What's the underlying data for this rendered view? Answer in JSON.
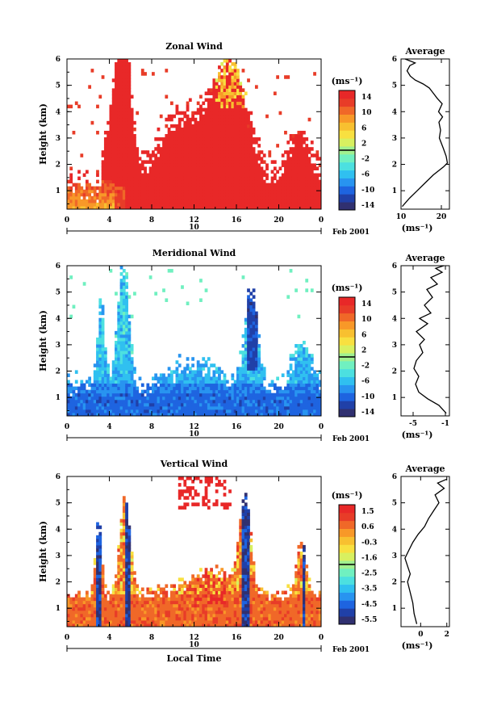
{
  "chart_data": [
    {
      "type": "heatmap",
      "title": "Zonal Wind",
      "ylabel": "Height (km)",
      "xticks": [
        "0",
        "4",
        "8",
        "12",
        "16",
        "20",
        "0"
      ],
      "yticks": [
        "1",
        "2",
        "3",
        "4",
        "5",
        "6"
      ],
      "xlim": [
        0,
        24
      ],
      "ylim": [
        0.3,
        6
      ],
      "date_day": "10",
      "date_label": "Feb 2001",
      "colorbar": {
        "unit_label": "(ms⁻¹)",
        "tick_labels": [
          "14",
          "10",
          "6",
          "2",
          "-2",
          "-6",
          "-10",
          "-14"
        ],
        "range": [
          -16,
          16
        ]
      },
      "profile": {
        "title": "Average",
        "xlabel": "(ms⁻¹)",
        "xticks": [
          "10",
          "20"
        ],
        "xlim": [
          10,
          22
        ],
        "yticks": [
          "1",
          "2",
          "3",
          "4",
          "5",
          "6"
        ],
        "points": [
          [
            10.3,
            0.4
          ],
          [
            12,
            0.7
          ],
          [
            14,
            1.0
          ],
          [
            16,
            1.3
          ],
          [
            18,
            1.6
          ],
          [
            20.5,
            1.9
          ],
          [
            21.5,
            2.05
          ],
          [
            21.2,
            2.3
          ],
          [
            20.5,
            2.6
          ],
          [
            19.5,
            3.0
          ],
          [
            19.8,
            3.3
          ],
          [
            19.4,
            3.6
          ],
          [
            20.3,
            3.8
          ],
          [
            19.3,
            4.0
          ],
          [
            20.2,
            4.3
          ],
          [
            19.0,
            4.5
          ],
          [
            18.0,
            4.7
          ],
          [
            17.0,
            4.9
          ],
          [
            15.5,
            5.05
          ],
          [
            13.5,
            5.2
          ],
          [
            12.3,
            5.35
          ],
          [
            11.5,
            5.55
          ],
          [
            12.2,
            5.75
          ],
          [
            13.5,
            5.85
          ],
          [
            11.0,
            6.0
          ]
        ]
      }
    },
    {
      "type": "heatmap",
      "title": "Meridional Wind",
      "ylabel": "Height (km)",
      "xticks": [
        "0",
        "4",
        "8",
        "12",
        "16",
        "20",
        "0"
      ],
      "yticks": [
        "1",
        "2",
        "3",
        "4",
        "5",
        "6"
      ],
      "xlim": [
        0,
        24
      ],
      "ylim": [
        0.3,
        6
      ],
      "date_day": "10",
      "date_label": "Feb 2001",
      "colorbar": {
        "unit_label": "(ms⁻¹)",
        "tick_labels": [
          "14",
          "10",
          "6",
          "2",
          "-2",
          "-6",
          "-10",
          "-14"
        ],
        "range": [
          -16,
          16
        ]
      },
      "profile": {
        "title": "Average",
        "xlabel": "(ms⁻¹)",
        "xticks": [
          "-5",
          "-1"
        ],
        "xlim": [
          -6.5,
          -0.5
        ],
        "yticks": [
          "1",
          "2",
          "3",
          "4",
          "5",
          "6"
        ],
        "points": [
          [
            -0.9,
            0.4
          ],
          [
            -1.8,
            0.7
          ],
          [
            -3.2,
            0.95
          ],
          [
            -4.3,
            1.2
          ],
          [
            -4.7,
            1.5
          ],
          [
            -4.3,
            1.8
          ],
          [
            -4.9,
            2.1
          ],
          [
            -4.6,
            2.4
          ],
          [
            -3.8,
            2.7
          ],
          [
            -4.2,
            3.0
          ],
          [
            -3.6,
            3.2
          ],
          [
            -4.6,
            3.5
          ],
          [
            -3.2,
            3.8
          ],
          [
            -4.2,
            4.0
          ],
          [
            -2.8,
            4.2
          ],
          [
            -3.6,
            4.5
          ],
          [
            -2.6,
            4.8
          ],
          [
            -3.3,
            5.1
          ],
          [
            -2.0,
            5.3
          ],
          [
            -2.8,
            5.55
          ],
          [
            -1.4,
            5.75
          ],
          [
            -2.2,
            5.9
          ],
          [
            -1.2,
            6.0
          ]
        ]
      }
    },
    {
      "type": "heatmap",
      "title": "Vertical Wind",
      "ylabel": "Height (km)",
      "xlabel": "Local Time",
      "xticks": [
        "0",
        "4",
        "8",
        "12",
        "16",
        "20",
        "0"
      ],
      "yticks": [
        "1",
        "2",
        "3",
        "4",
        "5",
        "6"
      ],
      "xlim": [
        0,
        24
      ],
      "ylim": [
        0.3,
        6
      ],
      "date_day": "10",
      "date_label": "Feb 2001",
      "colorbar": {
        "unit_label": "(ms⁻¹)",
        "tick_labels": [
          "1.5",
          "0.6",
          "-0.3",
          "-1.6",
          "-2.5",
          "-3.5",
          "-4.5",
          "-5.5"
        ],
        "range": [
          -6,
          2
        ]
      },
      "profile": {
        "title": "Average",
        "xlabel": "(ms⁻¹)",
        "xticks": [
          "0",
          "2"
        ],
        "xlim": [
          -1.5,
          2.2
        ],
        "yticks": [
          "1",
          "2",
          "3",
          "4",
          "5",
          "6"
        ],
        "points": [
          [
            -0.3,
            0.4
          ],
          [
            -0.5,
            0.8
          ],
          [
            -0.6,
            1.2
          ],
          [
            -0.8,
            1.6
          ],
          [
            -1.0,
            2.0
          ],
          [
            -0.8,
            2.3
          ],
          [
            -1.0,
            2.6
          ],
          [
            -1.2,
            2.9
          ],
          [
            -0.9,
            3.2
          ],
          [
            -0.6,
            3.5
          ],
          [
            -0.2,
            3.8
          ],
          [
            0.3,
            4.1
          ],
          [
            0.6,
            4.4
          ],
          [
            1.0,
            4.7
          ],
          [
            1.4,
            5.0
          ],
          [
            1.1,
            5.3
          ],
          [
            1.8,
            5.55
          ],
          [
            1.3,
            5.75
          ],
          [
            2.0,
            5.9
          ]
        ]
      }
    }
  ]
}
